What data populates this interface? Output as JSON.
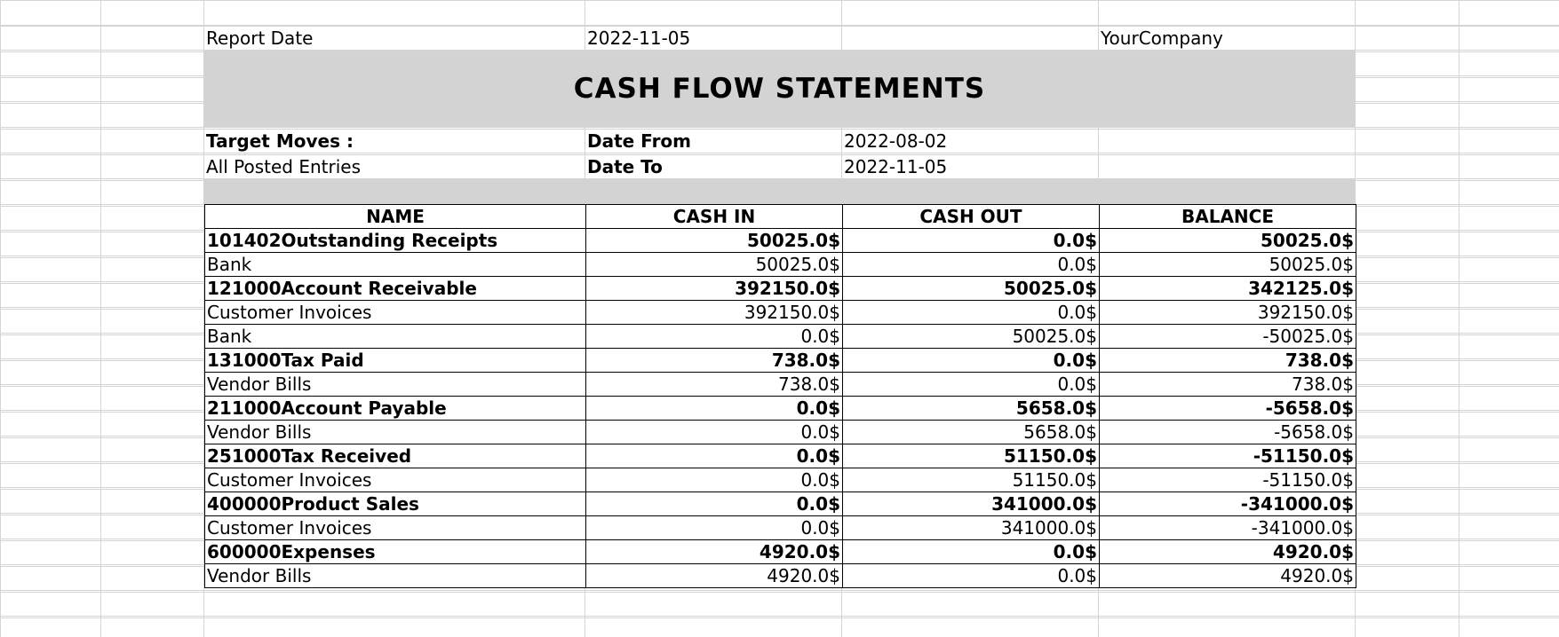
{
  "header": {
    "report_date_label": "Report Date",
    "report_date_value": "2022-11-05",
    "company": "YourCompany",
    "title": "CASH FLOW STATEMENTS"
  },
  "filters": {
    "target_moves_label": "Target Moves :",
    "target_moves_value": "All Posted Entries",
    "date_from_label": "Date From",
    "date_from_value": "2022-08-02",
    "date_to_label": "Date To",
    "date_to_value": "2022-11-05"
  },
  "table": {
    "columns": [
      "NAME",
      "CASH IN",
      "CASH OUT",
      "BALANCE"
    ],
    "rows": [
      {
        "type": "group",
        "name": "101402Outstanding Receipts",
        "cash_in": "50025.0$",
        "cash_out": "0.0$",
        "balance": "50025.0$"
      },
      {
        "type": "detail",
        "name": "Bank",
        "cash_in": "50025.0$",
        "cash_out": "0.0$",
        "balance": "50025.0$"
      },
      {
        "type": "group",
        "name": "121000Account Receivable",
        "cash_in": "392150.0$",
        "cash_out": "50025.0$",
        "balance": "342125.0$"
      },
      {
        "type": "detail",
        "name": "Customer Invoices",
        "cash_in": "392150.0$",
        "cash_out": "0.0$",
        "balance": "392150.0$"
      },
      {
        "type": "detail",
        "name": "Bank",
        "cash_in": "0.0$",
        "cash_out": "50025.0$",
        "balance": "-50025.0$"
      },
      {
        "type": "group",
        "name": "131000Tax Paid",
        "cash_in": "738.0$",
        "cash_out": "0.0$",
        "balance": "738.0$"
      },
      {
        "type": "detail",
        "name": "Vendor Bills",
        "cash_in": "738.0$",
        "cash_out": "0.0$",
        "balance": "738.0$"
      },
      {
        "type": "group",
        "name": "211000Account Payable",
        "cash_in": "0.0$",
        "cash_out": "5658.0$",
        "balance": "-5658.0$"
      },
      {
        "type": "detail",
        "name": "Vendor Bills",
        "cash_in": "0.0$",
        "cash_out": "5658.0$",
        "balance": "-5658.0$"
      },
      {
        "type": "group",
        "name": "251000Tax Received",
        "cash_in": "0.0$",
        "cash_out": "51150.0$",
        "balance": "-51150.0$"
      },
      {
        "type": "detail",
        "name": "Customer Invoices",
        "cash_in": "0.0$",
        "cash_out": "51150.0$",
        "balance": "-51150.0$"
      },
      {
        "type": "group",
        "name": "400000Product Sales",
        "cash_in": "0.0$",
        "cash_out": "341000.0$",
        "balance": "-341000.0$"
      },
      {
        "type": "detail",
        "name": "Customer Invoices",
        "cash_in": "0.0$",
        "cash_out": "341000.0$",
        "balance": "-341000.0$"
      },
      {
        "type": "group",
        "name": "600000Expenses",
        "cash_in": "4920.0$",
        "cash_out": "0.0$",
        "balance": "4920.0$"
      },
      {
        "type": "detail",
        "name": "Vendor Bills",
        "cash_in": "4920.0$",
        "cash_out": "0.0$",
        "balance": "4920.0$"
      }
    ]
  }
}
